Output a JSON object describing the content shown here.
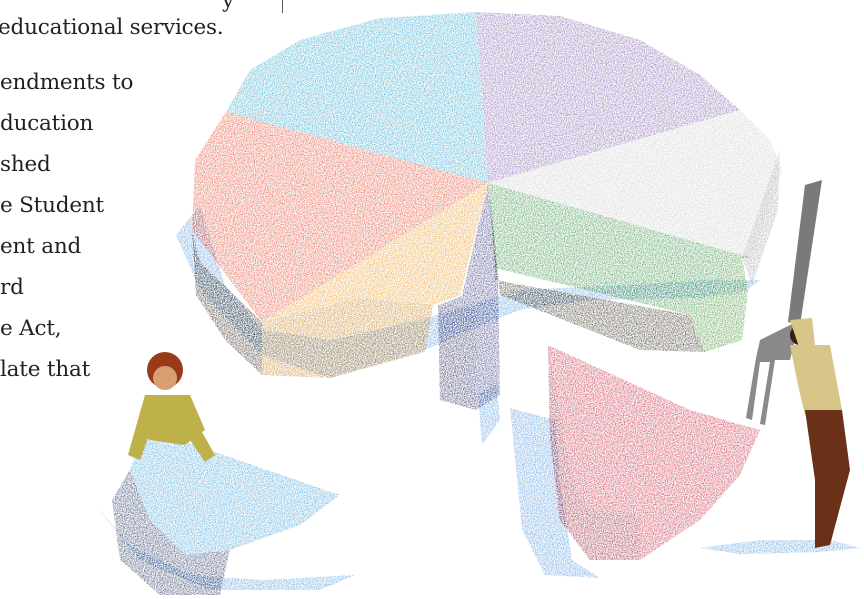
{
  "article": {
    "lines": [
      "y",
      "educational services.",
      "endments to",
      "ducation",
      "shed",
      "e Student",
      "ent and",
      "rd",
      "e Act,",
      "late that"
    ]
  },
  "illustration": {
    "subject": "pie chart with slices being removed by two figures",
    "colors": {
      "shadow": "#2f83d6",
      "teal": "#2aa1c9",
      "purple": "#7e5aa8",
      "silver": "#c9c9c9",
      "green": "#2f8a3a",
      "orange_red": "#e0452a",
      "orange": "#e8961f",
      "navy": "#2d2e7a",
      "crimson": "#c2203a",
      "side_dark": "#2a1e18"
    }
  }
}
